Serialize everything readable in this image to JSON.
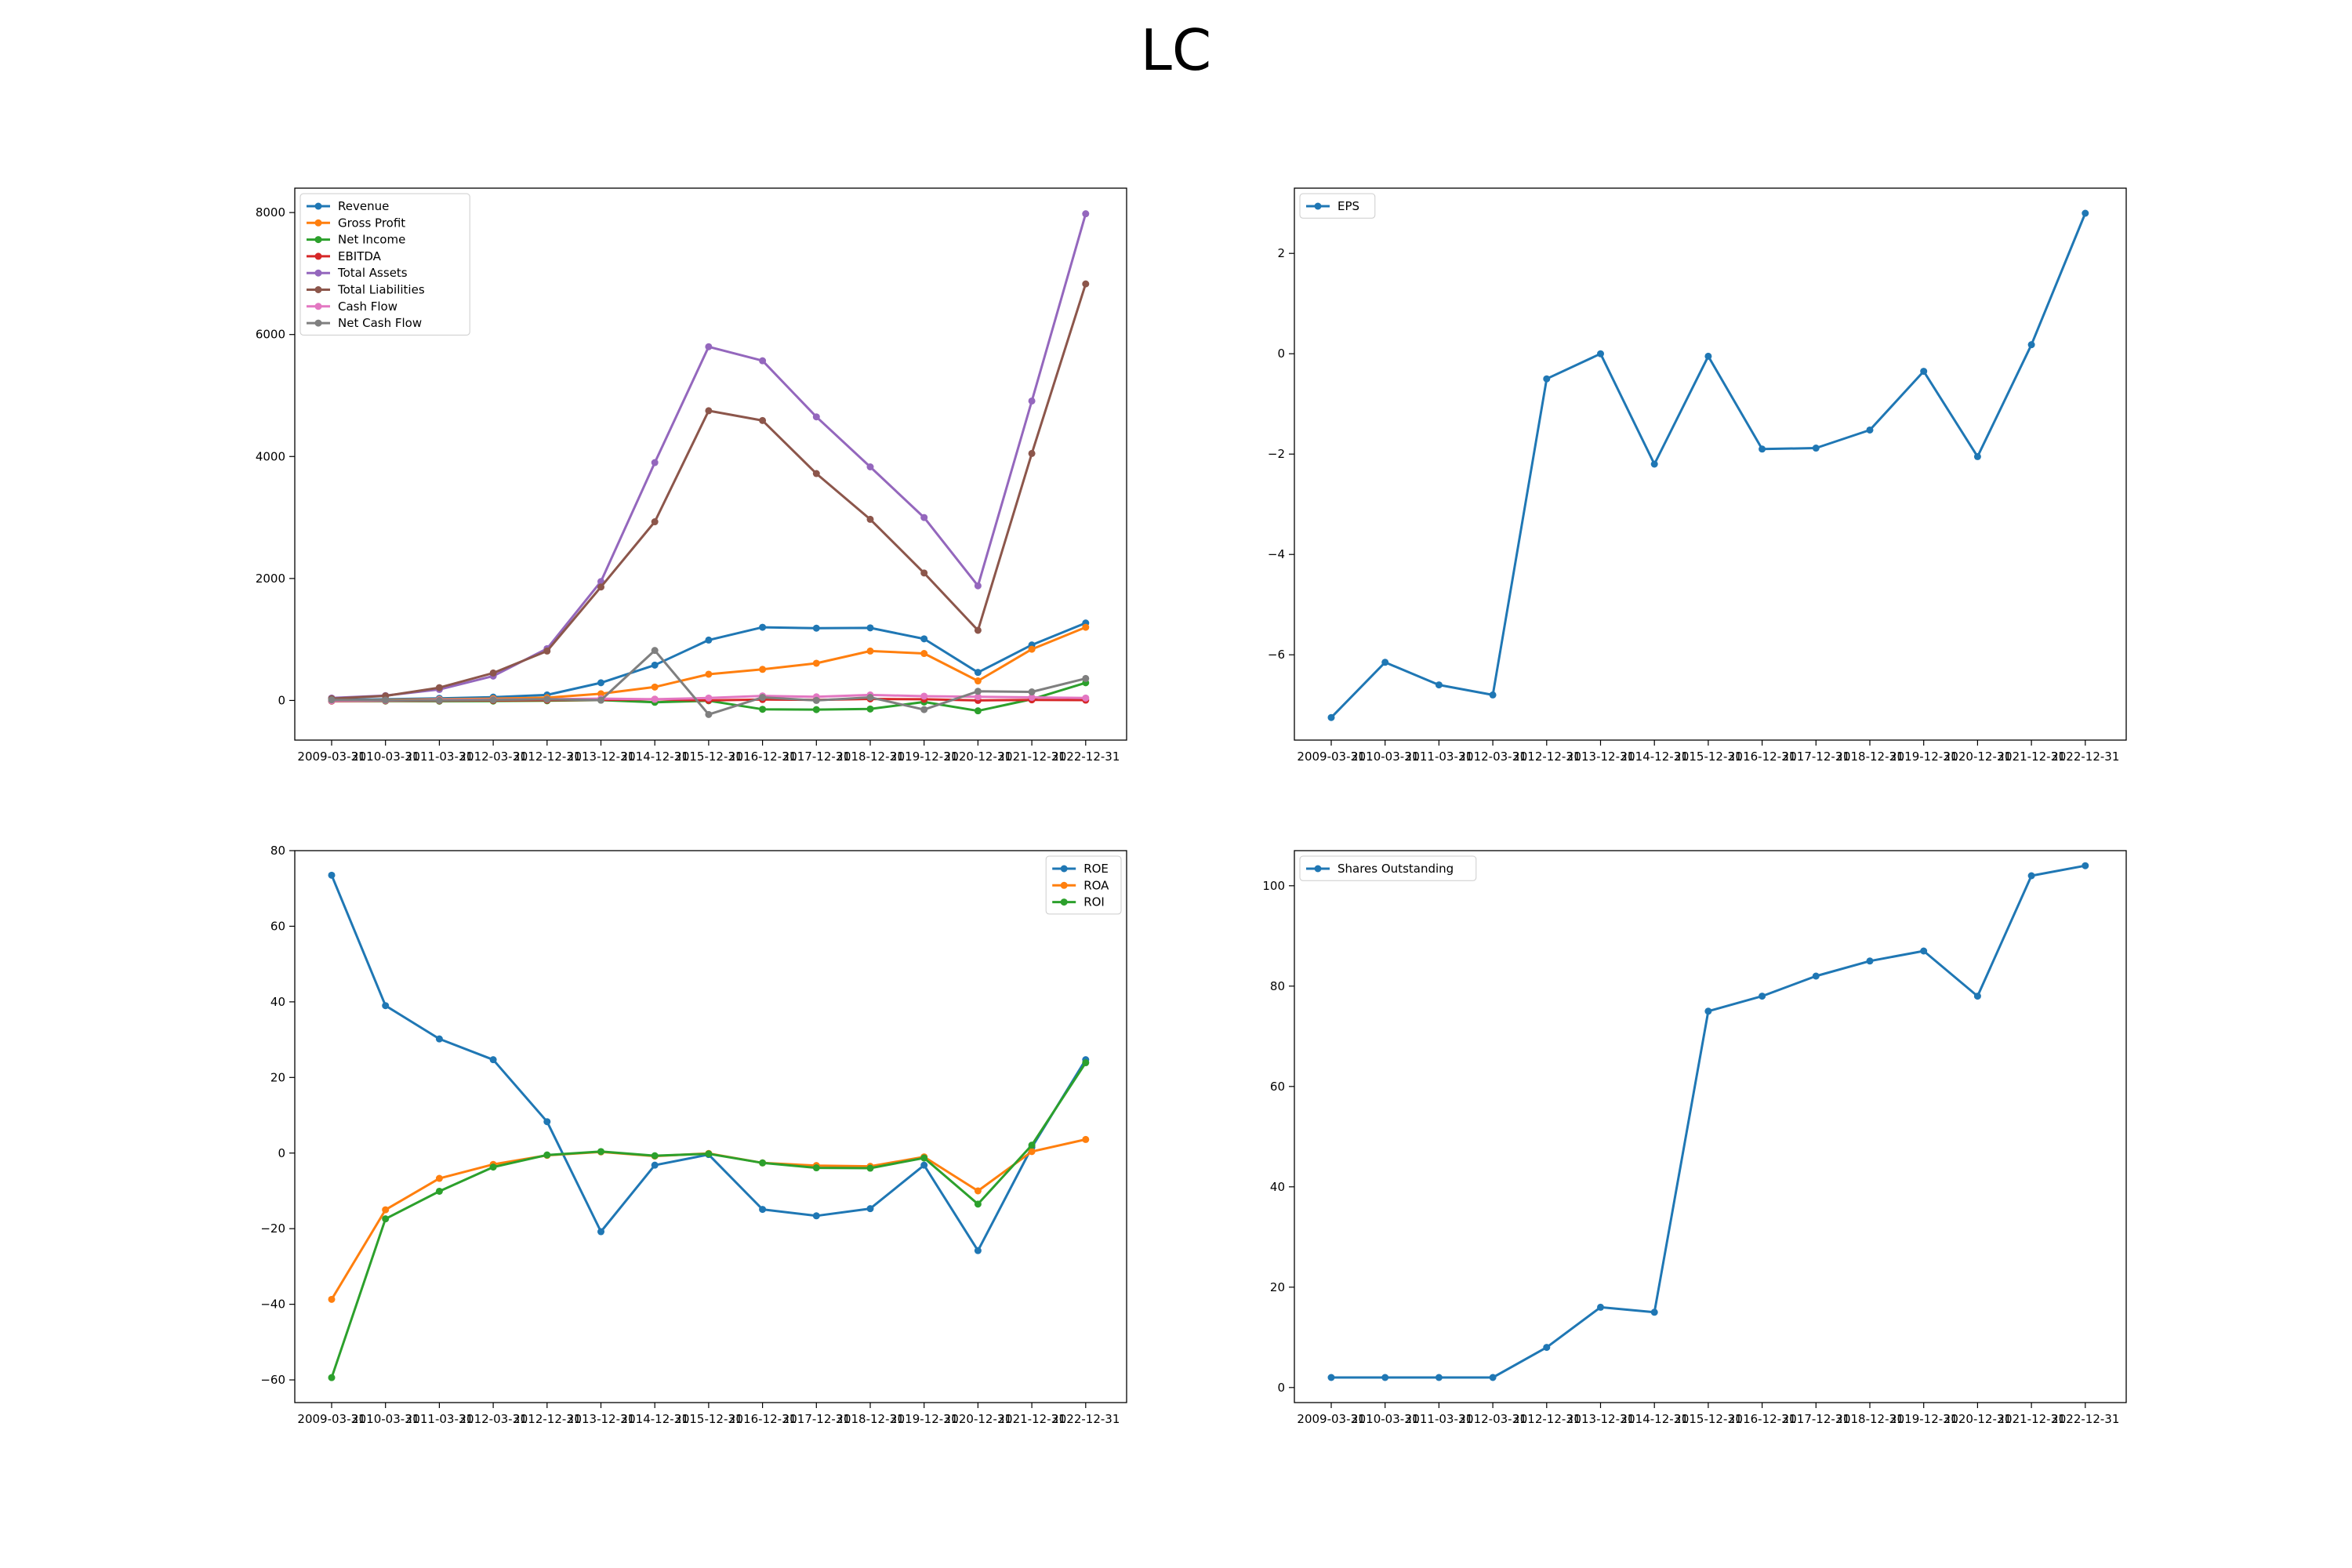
{
  "title": "LC",
  "colors": {
    "blue": "#1f77b4",
    "orange": "#ff7f0e",
    "green": "#2ca02c",
    "red": "#d62728",
    "purple": "#9467bd",
    "brown": "#8c564b",
    "pink": "#e377c2",
    "gray": "#7f7f7f"
  },
  "chart_data": [
    {
      "type": "line",
      "title": "",
      "x": [
        "2009-03-31",
        "2010-03-31",
        "2011-03-31",
        "2012-03-31",
        "2012-12-31",
        "2013-12-31",
        "2014-12-31",
        "2015-12-31",
        "2016-12-31",
        "2017-12-31",
        "2018-12-31",
        "2019-12-31",
        "2020-12-31",
        "2021-12-31",
        "2022-12-31"
      ],
      "ylim": [
        -650,
        8400
      ],
      "yticks": [
        0,
        2000,
        4000,
        6000,
        8000
      ],
      "grid": false,
      "legend": "top-left",
      "series": [
        {
          "name": "Revenue",
          "color": "#1f77b4",
          "values": [
            8,
            20,
            35,
            55,
            90,
            290,
            580,
            990,
            1200,
            1185,
            1190,
            1010,
            460,
            910,
            1270
          ]
        },
        {
          "name": "Gross Profit",
          "color": "#ff7f0e",
          "values": [
            2,
            10,
            18,
            30,
            45,
            110,
            220,
            430,
            510,
            610,
            810,
            770,
            320,
            840,
            1200
          ]
        },
        {
          "name": "Net Income",
          "color": "#2ca02c",
          "values": [
            -10,
            -10,
            -12,
            -10,
            -5,
            5,
            -30,
            -5,
            -145,
            -150,
            -140,
            -25,
            -170,
            20,
            290
          ]
        },
        {
          "name": "EBITDA",
          "color": "#d62728",
          "values": [
            -10,
            -5,
            -5,
            0,
            5,
            10,
            20,
            0,
            15,
            10,
            25,
            20,
            0,
            10,
            5
          ]
        },
        {
          "name": "Total Assets",
          "color": "#9467bd",
          "values": [
            40,
            80,
            180,
            400,
            850,
            1950,
            3900,
            5800,
            5570,
            4650,
            3830,
            3000,
            1880,
            4910,
            7980
          ]
        },
        {
          "name": "Total Liabilities",
          "color": "#8c564b",
          "values": [
            30,
            75,
            210,
            450,
            810,
            1860,
            2930,
            4750,
            4590,
            3720,
            2970,
            2090,
            1150,
            4050,
            6830
          ]
        },
        {
          "name": "Cash Flow",
          "color": "#e377c2",
          "values": [
            -5,
            0,
            10,
            15,
            20,
            30,
            20,
            40,
            75,
            60,
            90,
            70,
            60,
            50,
            40
          ]
        },
        {
          "name": "Net Cash Flow",
          "color": "#7f7f7f",
          "values": [
            10,
            5,
            0,
            10,
            20,
            5,
            820,
            -230,
            50,
            0,
            50,
            -150,
            150,
            140,
            360
          ]
        }
      ]
    },
    {
      "type": "line",
      "title": "",
      "x": [
        "2009-03-31",
        "2010-03-31",
        "2011-03-31",
        "2012-03-31",
        "2012-12-31",
        "2013-12-31",
        "2014-12-31",
        "2015-12-31",
        "2016-12-31",
        "2017-12-31",
        "2018-12-31",
        "2019-12-31",
        "2020-12-31",
        "2021-12-31",
        "2022-12-31"
      ],
      "ylim": [
        -7.7,
        3.3
      ],
      "yticks": [
        -6,
        -4,
        -2,
        0,
        2
      ],
      "grid": false,
      "legend": "top-left",
      "series": [
        {
          "name": "EPS",
          "color": "#1f77b4",
          "values": [
            -7.25,
            -6.15,
            -6.6,
            -6.8,
            -0.5,
            0.0,
            -2.2,
            -0.05,
            -1.9,
            -1.88,
            -1.52,
            -0.35,
            -2.05,
            0.18,
            2.8
          ]
        }
      ]
    },
    {
      "type": "line",
      "title": "",
      "x": [
        "2009-03-31",
        "2010-03-31",
        "2011-03-31",
        "2012-03-31",
        "2012-12-31",
        "2013-12-31",
        "2014-12-31",
        "2015-12-31",
        "2016-12-31",
        "2017-12-31",
        "2018-12-31",
        "2019-12-31",
        "2020-12-31",
        "2021-12-31",
        "2022-12-31"
      ],
      "ylim": [
        -66,
        80
      ],
      "yticks": [
        -60,
        -40,
        -20,
        0,
        20,
        40,
        60,
        80
      ],
      "grid": false,
      "legend": "top-right",
      "series": [
        {
          "name": "ROE",
          "color": "#1f77b4",
          "values": [
            73.5,
            39,
            30.2,
            24.7,
            8.3,
            -20.8,
            -3.2,
            -0.4,
            -14.9,
            -16.6,
            -14.7,
            -3.2,
            -25.8,
            1.5,
            24.7
          ]
        },
        {
          "name": "ROA",
          "color": "#ff7f0e",
          "values": [
            -38.7,
            -15,
            -6.7,
            -3,
            -0.6,
            0.3,
            -0.8,
            -0.1,
            -2.6,
            -3.3,
            -3.5,
            -1,
            -10,
            0.4,
            3.6
          ]
        },
        {
          "name": "ROI",
          "color": "#2ca02c",
          "values": [
            -59.4,
            -17.4,
            -10.1,
            -3.7,
            -0.5,
            0.4,
            -0.7,
            -0.2,
            -2.6,
            -3.9,
            -4,
            -1.3,
            -13.5,
            2.1,
            23.9
          ]
        }
      ]
    },
    {
      "type": "line",
      "title": "",
      "x": [
        "2009-03-31",
        "2010-03-31",
        "2011-03-31",
        "2012-03-31",
        "2012-12-31",
        "2013-12-31",
        "2014-12-31",
        "2015-12-31",
        "2016-12-31",
        "2017-12-31",
        "2018-12-31",
        "2019-12-31",
        "2020-12-31",
        "2021-12-31",
        "2022-12-31"
      ],
      "ylim": [
        -3,
        107
      ],
      "yticks": [
        0,
        20,
        40,
        60,
        80,
        100
      ],
      "grid": false,
      "legend": "top-left",
      "series": [
        {
          "name": "Shares Outstanding",
          "color": "#1f77b4",
          "values": [
            2,
            2,
            2,
            2,
            8,
            16,
            15,
            75,
            78,
            82,
            85,
            87,
            78,
            102,
            104
          ]
        }
      ]
    }
  ]
}
